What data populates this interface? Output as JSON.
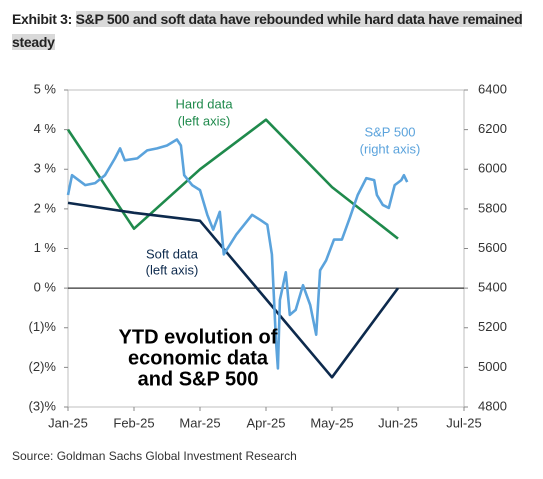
{
  "chart_data": {
    "type": "line",
    "title_prefix": "Exhibit 3:",
    "title": "S&P 500 and soft data have rebounded while hard data have remained steady",
    "source": "Source: Goldman Sachs Global Investment Research",
    "xlim": [
      0,
      6
    ],
    "xticks": [
      {
        "value": 0,
        "label": "Jan-25"
      },
      {
        "value": 1,
        "label": "Feb-25"
      },
      {
        "value": 2,
        "label": "Mar-25"
      },
      {
        "value": 3,
        "label": "Apr-25"
      },
      {
        "value": 4,
        "label": "May-25"
      },
      {
        "value": 5,
        "label": "Jun-25"
      },
      {
        "value": 6,
        "label": "Jul-25"
      }
    ],
    "ylim": [
      -3,
      5
    ],
    "yticks": [
      {
        "value": 5,
        "label": "5 %"
      },
      {
        "value": 4,
        "label": "4 %"
      },
      {
        "value": 3,
        "label": "3 %"
      },
      {
        "value": 2,
        "label": "2 %"
      },
      {
        "value": 1,
        "label": "1 %"
      },
      {
        "value": 0,
        "label": "0 %"
      },
      {
        "value": -1,
        "label": "(1)%"
      },
      {
        "value": -2,
        "label": "(2)%"
      },
      {
        "value": -3,
        "label": "(3)%"
      }
    ],
    "y2lim": [
      4800,
      6400
    ],
    "y2ticks": [
      6400,
      6200,
      6000,
      5800,
      5600,
      5400,
      5200,
      5000,
      4800
    ],
    "series": [
      {
        "name": "Hard data",
        "color": "#1f8a4c",
        "x": [
          0,
          1,
          2,
          3,
          4,
          5
        ],
        "values": [
          4.0,
          1.5,
          3.0,
          4.25,
          2.55,
          1.25
        ]
      },
      {
        "name": "Soft data",
        "color": "#0d2a4d",
        "x": [
          0,
          1,
          2,
          4,
          5
        ],
        "values": [
          2.15,
          1.9,
          1.7,
          -2.25,
          0
        ]
      },
      {
        "name": "S&P 500",
        "color": "#5ba3dc",
        "axis": "y2",
        "x": [
          0,
          0.06,
          0.26,
          0.41,
          0.56,
          0.71,
          0.79,
          0.86,
          1.05,
          1.2,
          1.35,
          1.5,
          1.65,
          1.71,
          1.76,
          1.88,
          2.0,
          2.11,
          2.2,
          2.3,
          2.36,
          2.55,
          2.67,
          2.79,
          2.91,
          3.02,
          3.09,
          3.15,
          3.18,
          3.21,
          3.3,
          3.36,
          3.45,
          3.56,
          3.67,
          3.76,
          3.82,
          3.91,
          4.03,
          4.15,
          4.27,
          4.39,
          4.52,
          4.64,
          4.68,
          4.77,
          4.86,
          4.95,
          5.05,
          5.09,
          5.14
        ],
        "values": [
          5870,
          5970,
          5920,
          5930,
          5970,
          6055,
          6105,
          6045,
          6055,
          6095,
          6105,
          6120,
          6150,
          6120,
          5970,
          5920,
          5895,
          5770,
          5695,
          5785,
          5570,
          5670,
          5720,
          5770,
          5745,
          5720,
          5570,
          5140,
          4995,
          5340,
          5480,
          5265,
          5290,
          5415,
          5315,
          5165,
          5490,
          5540,
          5645,
          5645,
          5755,
          5870,
          5955,
          5945,
          5870,
          5820,
          5805,
          5920,
          5945,
          5970,
          5935
        ]
      }
    ],
    "annotations": {
      "hard": [
        "Hard data",
        "(left axis)"
      ],
      "sp": [
        "S&P 500",
        "(right axis)"
      ],
      "soft": [
        "Soft data",
        "(left axis)"
      ],
      "center": [
        "YTD evolution of",
        "economic data",
        "and S&P 500"
      ]
    }
  }
}
